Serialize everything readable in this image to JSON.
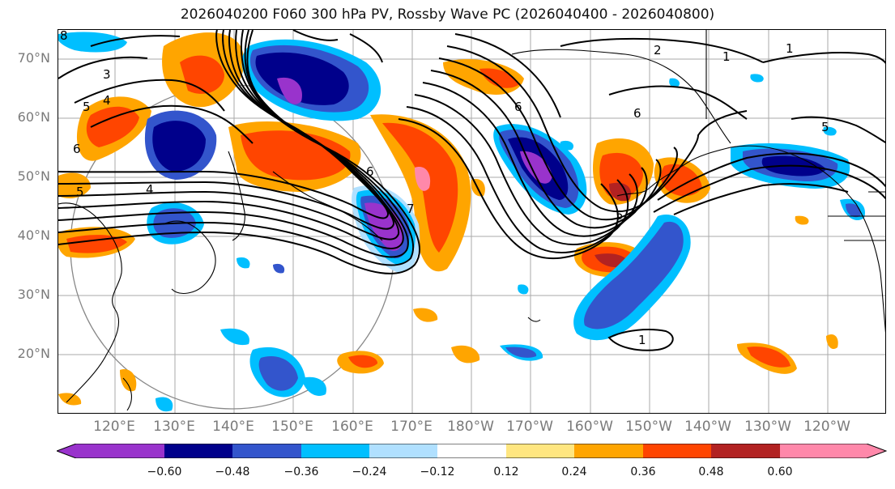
{
  "title": "2026040200 F060 300 hPa PV, Rossby Wave PC (2026040400 - 2026040800)",
  "lat_labels": [
    "70°N",
    "60°N",
    "50°N",
    "40°N",
    "30°N",
    "20°N"
  ],
  "lon_labels": [
    "120°E",
    "130°E",
    "140°E",
    "150°E",
    "160°E",
    "170°E",
    "180°W",
    "170°W",
    "160°W",
    "150°W",
    "140°W",
    "130°W",
    "120°W"
  ],
  "colorbar": {
    "ticks": [
      "−0.60",
      "−0.48",
      "−0.36",
      "−0.24",
      "−0.12",
      "0.12",
      "0.24",
      "0.36",
      "0.48",
      "0.60"
    ],
    "colors": [
      "#9933cc",
      "#00008b",
      "#3355cc",
      "#00bfff",
      "#b0e0ff",
      "#ffffff",
      "#ffe680",
      "#ffa500",
      "#ff4500",
      "#b22222",
      "#ff88aa"
    ]
  },
  "contour_labels": [
    "1",
    "1",
    "2",
    "3",
    "4",
    "4",
    "5",
    "5",
    "5",
    "5",
    "6",
    "6",
    "6",
    "6",
    "7",
    "8",
    "1"
  ],
  "colors": {
    "purple": "#9933cc",
    "navy": "#00008b",
    "blue": "#3355cc",
    "cyan": "#00bfff",
    "lightblue": "#b0e0ff",
    "yellow": "#ffe680",
    "orange": "#ffa500",
    "redorange": "#ff4500",
    "darkred": "#b22222",
    "pink": "#ff88aa"
  }
}
